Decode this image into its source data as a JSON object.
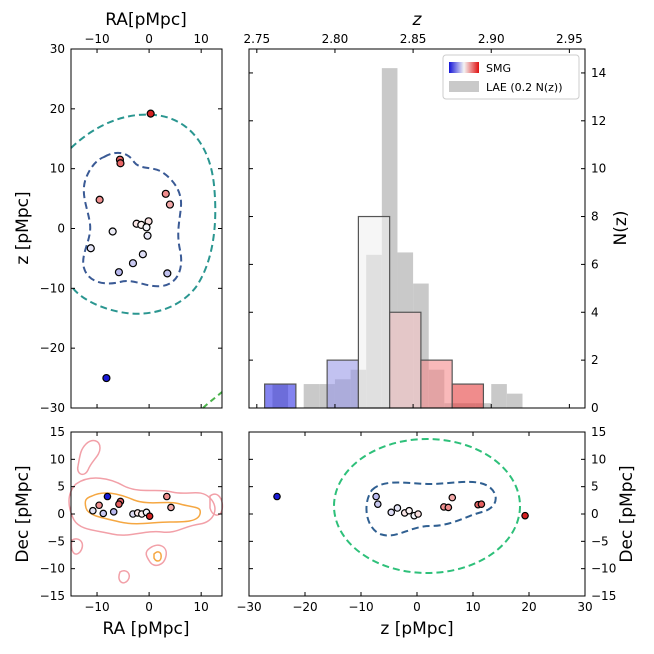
{
  "colors": {
    "inner_contour": "#3a5a95",
    "outer_contour_top": "#2a9690",
    "outer_contour_bottom": "#2ec07a",
    "lae_bar": "#c9c9c9",
    "lae_bar_light": "#e8e8e8",
    "smg_blue": "#3030e0",
    "smg_red": "#e01010",
    "kde_orange": "#f5a742",
    "kde_pink": "#f2a0a8"
  },
  "chart_data": [
    {
      "panel": "top-left",
      "type": "scatter",
      "title": "RA[pMpc]",
      "xlabel": "RA[pMpc]",
      "ylabel": "z [pMpc]",
      "xlim": [
        -15,
        14
      ],
      "ylim": [
        -30,
        30
      ],
      "xticks": [
        "−10",
        "0",
        "10"
      ],
      "yticks": [
        "30",
        "20",
        "10",
        "0",
        "−10",
        "−20",
        "−30"
      ],
      "points": [
        {
          "x": 0.3,
          "y": 19.2,
          "color": "#d42222"
        },
        {
          "x": -5.6,
          "y": 11.5,
          "color": "#e66060"
        },
        {
          "x": -5.5,
          "y": 10.9,
          "color": "#e86666"
        },
        {
          "x": 3.2,
          "y": 5.8,
          "color": "#ef8c8c"
        },
        {
          "x": -9.5,
          "y": 4.8,
          "color": "#f09090"
        },
        {
          "x": 4.0,
          "y": 4.0,
          "color": "#f3a8a8"
        },
        {
          "x": -0.1,
          "y": 1.2,
          "color": "#f8dede"
        },
        {
          "x": -2.4,
          "y": 0.8,
          "color": "#fce8e8"
        },
        {
          "x": -1.5,
          "y": 0.6,
          "color": "#fdf4f4"
        },
        {
          "x": -0.5,
          "y": 0.2,
          "color": "#f4f4fa"
        },
        {
          "x": -7.0,
          "y": -0.5,
          "color": "#ececf6"
        },
        {
          "x": -0.3,
          "y": -1.2,
          "color": "#e8e8f8"
        },
        {
          "x": -11.2,
          "y": -3.3,
          "color": "#e6e6f8"
        },
        {
          "x": -1.2,
          "y": -4.3,
          "color": "#dedef6"
        },
        {
          "x": -3.1,
          "y": -5.8,
          "color": "#c8c8f0"
        },
        {
          "x": -5.8,
          "y": -7.3,
          "color": "#b8b8ee"
        },
        {
          "x": 3.5,
          "y": -7.5,
          "color": "#c0c0ee"
        },
        {
          "x": -8.2,
          "y": -25.0,
          "color": "#1a1ad8"
        }
      ]
    },
    {
      "panel": "top-right",
      "type": "bar",
      "xlabel": "z",
      "ylabel": "N(z)",
      "xlim": [
        2.745,
        2.96
      ],
      "ylim": [
        0,
        15
      ],
      "xticks": [
        "2.75",
        "2.80",
        "2.85",
        "2.90",
        "2.95"
      ],
      "yticks": [
        "0",
        "2",
        "4",
        "6",
        "8",
        "10",
        "12",
        "14"
      ],
      "legend": {
        "position": "top-right",
        "smg_label": "SMG",
        "lae_label": "LAE (0.2 N(z))"
      },
      "lae_bins": [
        {
          "x0": 2.76,
          "x1": 2.77,
          "value": 1.0
        },
        {
          "x0": 2.77,
          "x1": 2.78,
          "value": 0.0
        },
        {
          "x0": 2.78,
          "x1": 2.79,
          "value": 1.0
        },
        {
          "x0": 2.79,
          "x1": 2.8,
          "value": 1.0
        },
        {
          "x0": 2.8,
          "x1": 2.81,
          "value": 1.2
        },
        {
          "x0": 2.81,
          "x1": 2.82,
          "value": 1.6
        },
        {
          "x0": 2.82,
          "x1": 2.83,
          "value": 6.4
        },
        {
          "x0": 2.83,
          "x1": 2.84,
          "value": 14.2
        },
        {
          "x0": 2.84,
          "x1": 2.85,
          "value": 6.5
        },
        {
          "x0": 2.85,
          "x1": 2.86,
          "value": 5.2
        },
        {
          "x0": 2.86,
          "x1": 2.87,
          "value": 1.6
        },
        {
          "x0": 2.87,
          "x1": 2.88,
          "value": 0.2
        },
        {
          "x0": 2.88,
          "x1": 2.89,
          "value": 0.2
        },
        {
          "x0": 2.89,
          "x1": 2.9,
          "value": 0.2
        },
        {
          "x0": 2.9,
          "x1": 2.91,
          "value": 1.0
        },
        {
          "x0": 2.91,
          "x1": 2.92,
          "value": 0.6
        }
      ],
      "smg_bins": [
        {
          "x0": 2.755,
          "x1": 2.775,
          "value": 1,
          "color": "#3030e6"
        },
        {
          "x0": 2.795,
          "x1": 2.815,
          "value": 2,
          "color": "#9a9ae8"
        },
        {
          "x0": 2.815,
          "x1": 2.835,
          "value": 8,
          "color": "#f0f0f0"
        },
        {
          "x0": 2.835,
          "x1": 2.855,
          "value": 4,
          "color": "#f7c6c8"
        },
        {
          "x0": 2.855,
          "x1": 2.875,
          "value": 2,
          "color": "#f58a8c"
        },
        {
          "x0": 2.875,
          "x1": 2.895,
          "value": 1,
          "color": "#e64040"
        }
      ]
    },
    {
      "panel": "bottom-left",
      "type": "scatter",
      "xlabel": "RA [pMpc]",
      "ylabel": "Dec [pMpc]",
      "xlim": [
        -15,
        14
      ],
      "ylim": [
        -15,
        15
      ],
      "xticks": [
        "−10",
        "0",
        "10"
      ],
      "yticks": [
        "15",
        "10",
        "5",
        "0",
        "−5",
        "−10",
        "−15"
      ],
      "points": [
        {
          "x": -8.0,
          "y": 3.2,
          "color": "#1a1ad8"
        },
        {
          "x": -5.5,
          "y": 2.3,
          "color": "#e86666"
        },
        {
          "x": -5.8,
          "y": 1.8,
          "color": "#e66060"
        },
        {
          "x": 3.4,
          "y": 3.2,
          "color": "#ef8c8c"
        },
        {
          "x": -9.6,
          "y": 1.6,
          "color": "#f09090"
        },
        {
          "x": 4.2,
          "y": 1.2,
          "color": "#f3a8a8"
        },
        {
          "x": -10.8,
          "y": 0.6,
          "color": "#e6e6f8"
        },
        {
          "x": -8.8,
          "y": 0.1,
          "color": "#c8c8f0"
        },
        {
          "x": -6.8,
          "y": 0.4,
          "color": "#b8b8ee"
        },
        {
          "x": -3.1,
          "y": 0.0,
          "color": "#dedef6"
        },
        {
          "x": -2.2,
          "y": 0.2,
          "color": "#fce8e8"
        },
        {
          "x": -1.4,
          "y": 0.0,
          "color": "#fdf4f4"
        },
        {
          "x": -0.5,
          "y": 0.3,
          "color": "#f4f4fa"
        },
        {
          "x": 0.1,
          "y": -0.4,
          "color": "#d42222"
        }
      ]
    },
    {
      "panel": "bottom-right",
      "type": "scatter",
      "xlabel": "z [pMpc]",
      "ylabel": "Dec [pMpc]",
      "xlim": [
        -30,
        30
      ],
      "ylim": [
        -15,
        15
      ],
      "xticks": [
        "−30",
        "−20",
        "−10",
        "0",
        "10",
        "20",
        "30"
      ],
      "yticks": [
        "15",
        "10",
        "5",
        "0",
        "−5",
        "−10",
        "−15"
      ],
      "points": [
        {
          "x": -25.0,
          "y": 3.2,
          "color": "#1a1ad8"
        },
        {
          "x": -7.3,
          "y": 3.2,
          "color": "#b8b8ee"
        },
        {
          "x": -7.0,
          "y": 1.8,
          "color": "#c8c8f0"
        },
        {
          "x": -4.6,
          "y": 0.3,
          "color": "#dedef6"
        },
        {
          "x": -3.5,
          "y": 1.1,
          "color": "#e6e6f8"
        },
        {
          "x": -2.2,
          "y": 0.2,
          "color": "#fce8e8"
        },
        {
          "x": -1.4,
          "y": 0.6,
          "color": "#fdf4f4"
        },
        {
          "x": -0.5,
          "y": -0.3,
          "color": "#f4f4fa"
        },
        {
          "x": 0.2,
          "y": 0.0,
          "color": "#f8dede"
        },
        {
          "x": 4.8,
          "y": 1.3,
          "color": "#f09090"
        },
        {
          "x": 5.6,
          "y": 1.2,
          "color": "#ef8c8c"
        },
        {
          "x": 6.3,
          "y": 3.0,
          "color": "#f3a8a8"
        },
        {
          "x": 10.9,
          "y": 1.7,
          "color": "#e86666"
        },
        {
          "x": 11.5,
          "y": 1.8,
          "color": "#e66060"
        },
        {
          "x": 19.3,
          "y": -0.3,
          "color": "#d42222"
        }
      ]
    }
  ]
}
